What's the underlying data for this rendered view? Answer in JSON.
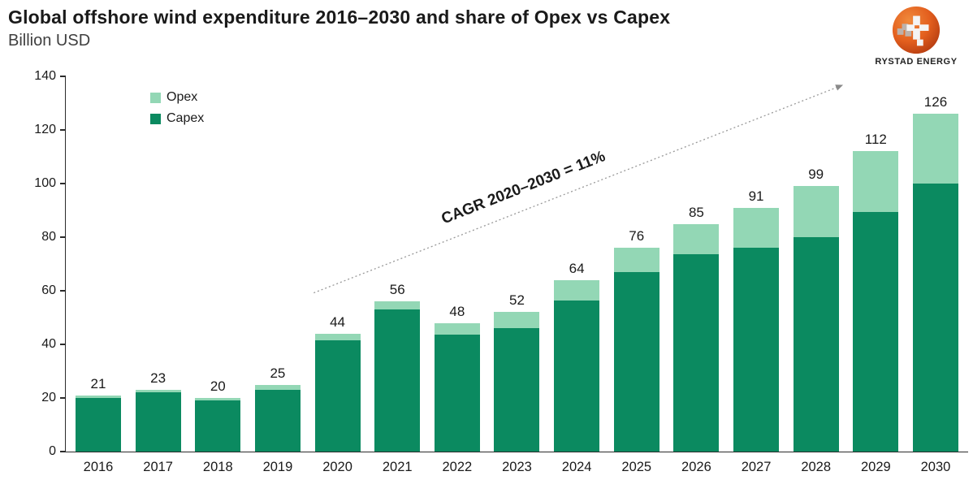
{
  "header": {
    "title": "Global offshore wind expenditure 2016–2030 and share of Opex vs Capex",
    "subtitle": "Billion USD"
  },
  "logo": {
    "brand": "RYSTAD ENERGY"
  },
  "chart_data": {
    "type": "bar",
    "stacked": true,
    "title": "Global offshore wind expenditure 2016–2030 and share of Opex vs Capex",
    "ylabel": "Billion USD",
    "xlabel": "",
    "ylim": [
      0,
      140
    ],
    "ytick_step": 20,
    "grid": false,
    "legend_position": "top-left",
    "categories": [
      "2016",
      "2017",
      "2018",
      "2019",
      "2020",
      "2021",
      "2022",
      "2023",
      "2024",
      "2025",
      "2026",
      "2027",
      "2028",
      "2029",
      "2030"
    ],
    "series": [
      {
        "name": "Capex",
        "color": "#0b8a60",
        "values": [
          20,
          22,
          19,
          23,
          41.5,
          53,
          43.5,
          46,
          56.5,
          67,
          73.5,
          76,
          80,
          89.5,
          100
        ]
      },
      {
        "name": "Opex",
        "color": "#93d7b5",
        "values": [
          1,
          1,
          1,
          2,
          2.5,
          3,
          4.5,
          6,
          7.5,
          9,
          11.5,
          15,
          19,
          22.5,
          26
        ]
      }
    ],
    "totals": [
      21,
      23,
      20,
      25,
      44,
      56,
      48,
      52,
      64,
      76,
      85,
      91,
      99,
      112,
      126
    ],
    "annotation": {
      "text": "CAGR 2020–2030 = 11%"
    },
    "colors": {
      "capex": "#0b8a60",
      "opex": "#93d7b5",
      "axis": "#2b2b2b",
      "annotation_line": "#999999"
    }
  }
}
